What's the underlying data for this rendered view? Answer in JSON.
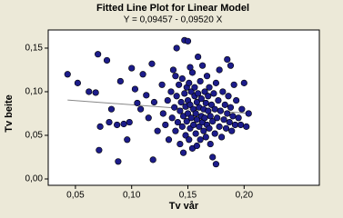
{
  "chart_data": {
    "type": "scatter",
    "title": "Fitted Line Plot for Linear Model",
    "subtitle": "Y = 0,09457 - 0,09520 X",
    "x_label": "Tv vår",
    "y_label": "Tv beite",
    "color": "#1c1c8a",
    "grid": false,
    "xlim": [
      0.0258,
      0.2669
    ],
    "ylim": [
      -0.0073,
      0.1708
    ],
    "xticks": [
      {
        "value": 0.05,
        "label": "0,05"
      },
      {
        "value": 0.1,
        "label": "0,10"
      },
      {
        "value": 0.15,
        "label": "0,15"
      },
      {
        "value": 0.2,
        "label": "0,20"
      }
    ],
    "yticks": [
      {
        "value": 0,
        "label": "0,00"
      },
      {
        "value": 0.05,
        "label": "0,05"
      },
      {
        "value": 0.1,
        "label": "0,10"
      },
      {
        "value": 0.15,
        "label": "0,15"
      }
    ],
    "x": [
      0.043,
      0.052,
      0.062,
      0.068,
      0.07,
      0.071,
      0.078,
      0.072,
      0.08,
      0.082,
      0.087,
      0.088,
      0.09,
      0.093,
      0.096,
      0.098,
      0.1,
      0.103,
      0.105,
      0.108,
      0.11,
      0.113,
      0.115,
      0.118,
      0.119,
      0.12,
      0.123,
      0.127,
      0.128,
      0.13,
      0.132,
      0.133,
      0.135,
      0.136,
      0.137,
      0.138,
      0.139,
      0.14,
      0.14,
      0.141,
      0.142,
      0.143,
      0.143,
      0.144,
      0.145,
      0.145,
      0.146,
      0.147,
      0.147,
      0.148,
      0.148,
      0.149,
      0.149,
      0.15,
      0.15,
      0.15,
      0.151,
      0.151,
      0.152,
      0.152,
      0.153,
      0.153,
      0.154,
      0.154,
      0.155,
      0.155,
      0.156,
      0.156,
      0.157,
      0.157,
      0.158,
      0.158,
      0.159,
      0.159,
      0.16,
      0.16,
      0.161,
      0.161,
      0.162,
      0.162,
      0.163,
      0.163,
      0.164,
      0.164,
      0.165,
      0.165,
      0.166,
      0.166,
      0.167,
      0.167,
      0.168,
      0.168,
      0.169,
      0.169,
      0.17,
      0.17,
      0.171,
      0.172,
      0.172,
      0.173,
      0.174,
      0.174,
      0.175,
      0.175,
      0.176,
      0.177,
      0.178,
      0.178,
      0.179,
      0.18,
      0.181,
      0.182,
      0.183,
      0.184,
      0.185,
      0.185,
      0.186,
      0.187,
      0.188,
      0.188,
      0.189,
      0.19,
      0.191,
      0.192,
      0.193,
      0.195,
      0.197,
      0.198,
      0.2,
      0.204,
      0.202,
      0.146,
      0.158,
      0.139,
      0.152
    ],
    "values": [
      0.12,
      0.11,
      0.1,
      0.099,
      0.143,
      0.033,
      0.136,
      0.06,
      0.065,
      0.08,
      0.062,
      0.02,
      0.112,
      0.063,
      0.045,
      0.065,
      0.127,
      0.103,
      0.087,
      0.08,
      0.12,
      0.096,
      0.07,
      0.132,
      0.022,
      0.088,
      0.055,
      0.108,
      0.075,
      0.062,
      0.09,
      0.045,
      0.1,
      0.07,
      0.125,
      0.082,
      0.055,
      0.15,
      0.095,
      0.065,
      0.108,
      0.078,
      0.04,
      0.088,
      0.06,
      0.115,
      0.072,
      0.159,
      0.098,
      0.05,
      0.083,
      0.105,
      0.066,
      0.158,
      0.09,
      0.075,
      0.045,
      0.11,
      0.058,
      0.085,
      0.1,
      0.07,
      0.122,
      0.035,
      0.08,
      0.062,
      0.095,
      0.105,
      0.052,
      0.075,
      0.088,
      0.068,
      0.14,
      0.098,
      0.06,
      0.082,
      0.112,
      0.045,
      0.072,
      0.092,
      0.065,
      0.13,
      0.08,
      0.055,
      0.1,
      0.07,
      0.087,
      0.048,
      0.118,
      0.062,
      0.078,
      0.095,
      0.058,
      0.105,
      0.072,
      0.04,
      0.085,
      0.025,
      0.066,
      0.098,
      0.08,
      0.052,
      0.017,
      0.11,
      0.07,
      0.09,
      0.06,
      0.125,
      0.078,
      0.048,
      0.1,
      0.068,
      0.085,
      0.058,
      0.137,
      0.075,
      0.095,
      0.065,
      0.13,
      0.082,
      0.055,
      0.072,
      0.108,
      0.062,
      0.09,
      0.07,
      0.062,
      0.08,
      0.11,
      0.075,
      0.06,
      0.03,
      0.038,
      0.118,
      0.128
    ],
    "fit_line": {
      "color": "#888888",
      "x": [
        0.043,
        0.204
      ],
      "values": [
        0.0905,
        0.0752
      ]
    }
  }
}
